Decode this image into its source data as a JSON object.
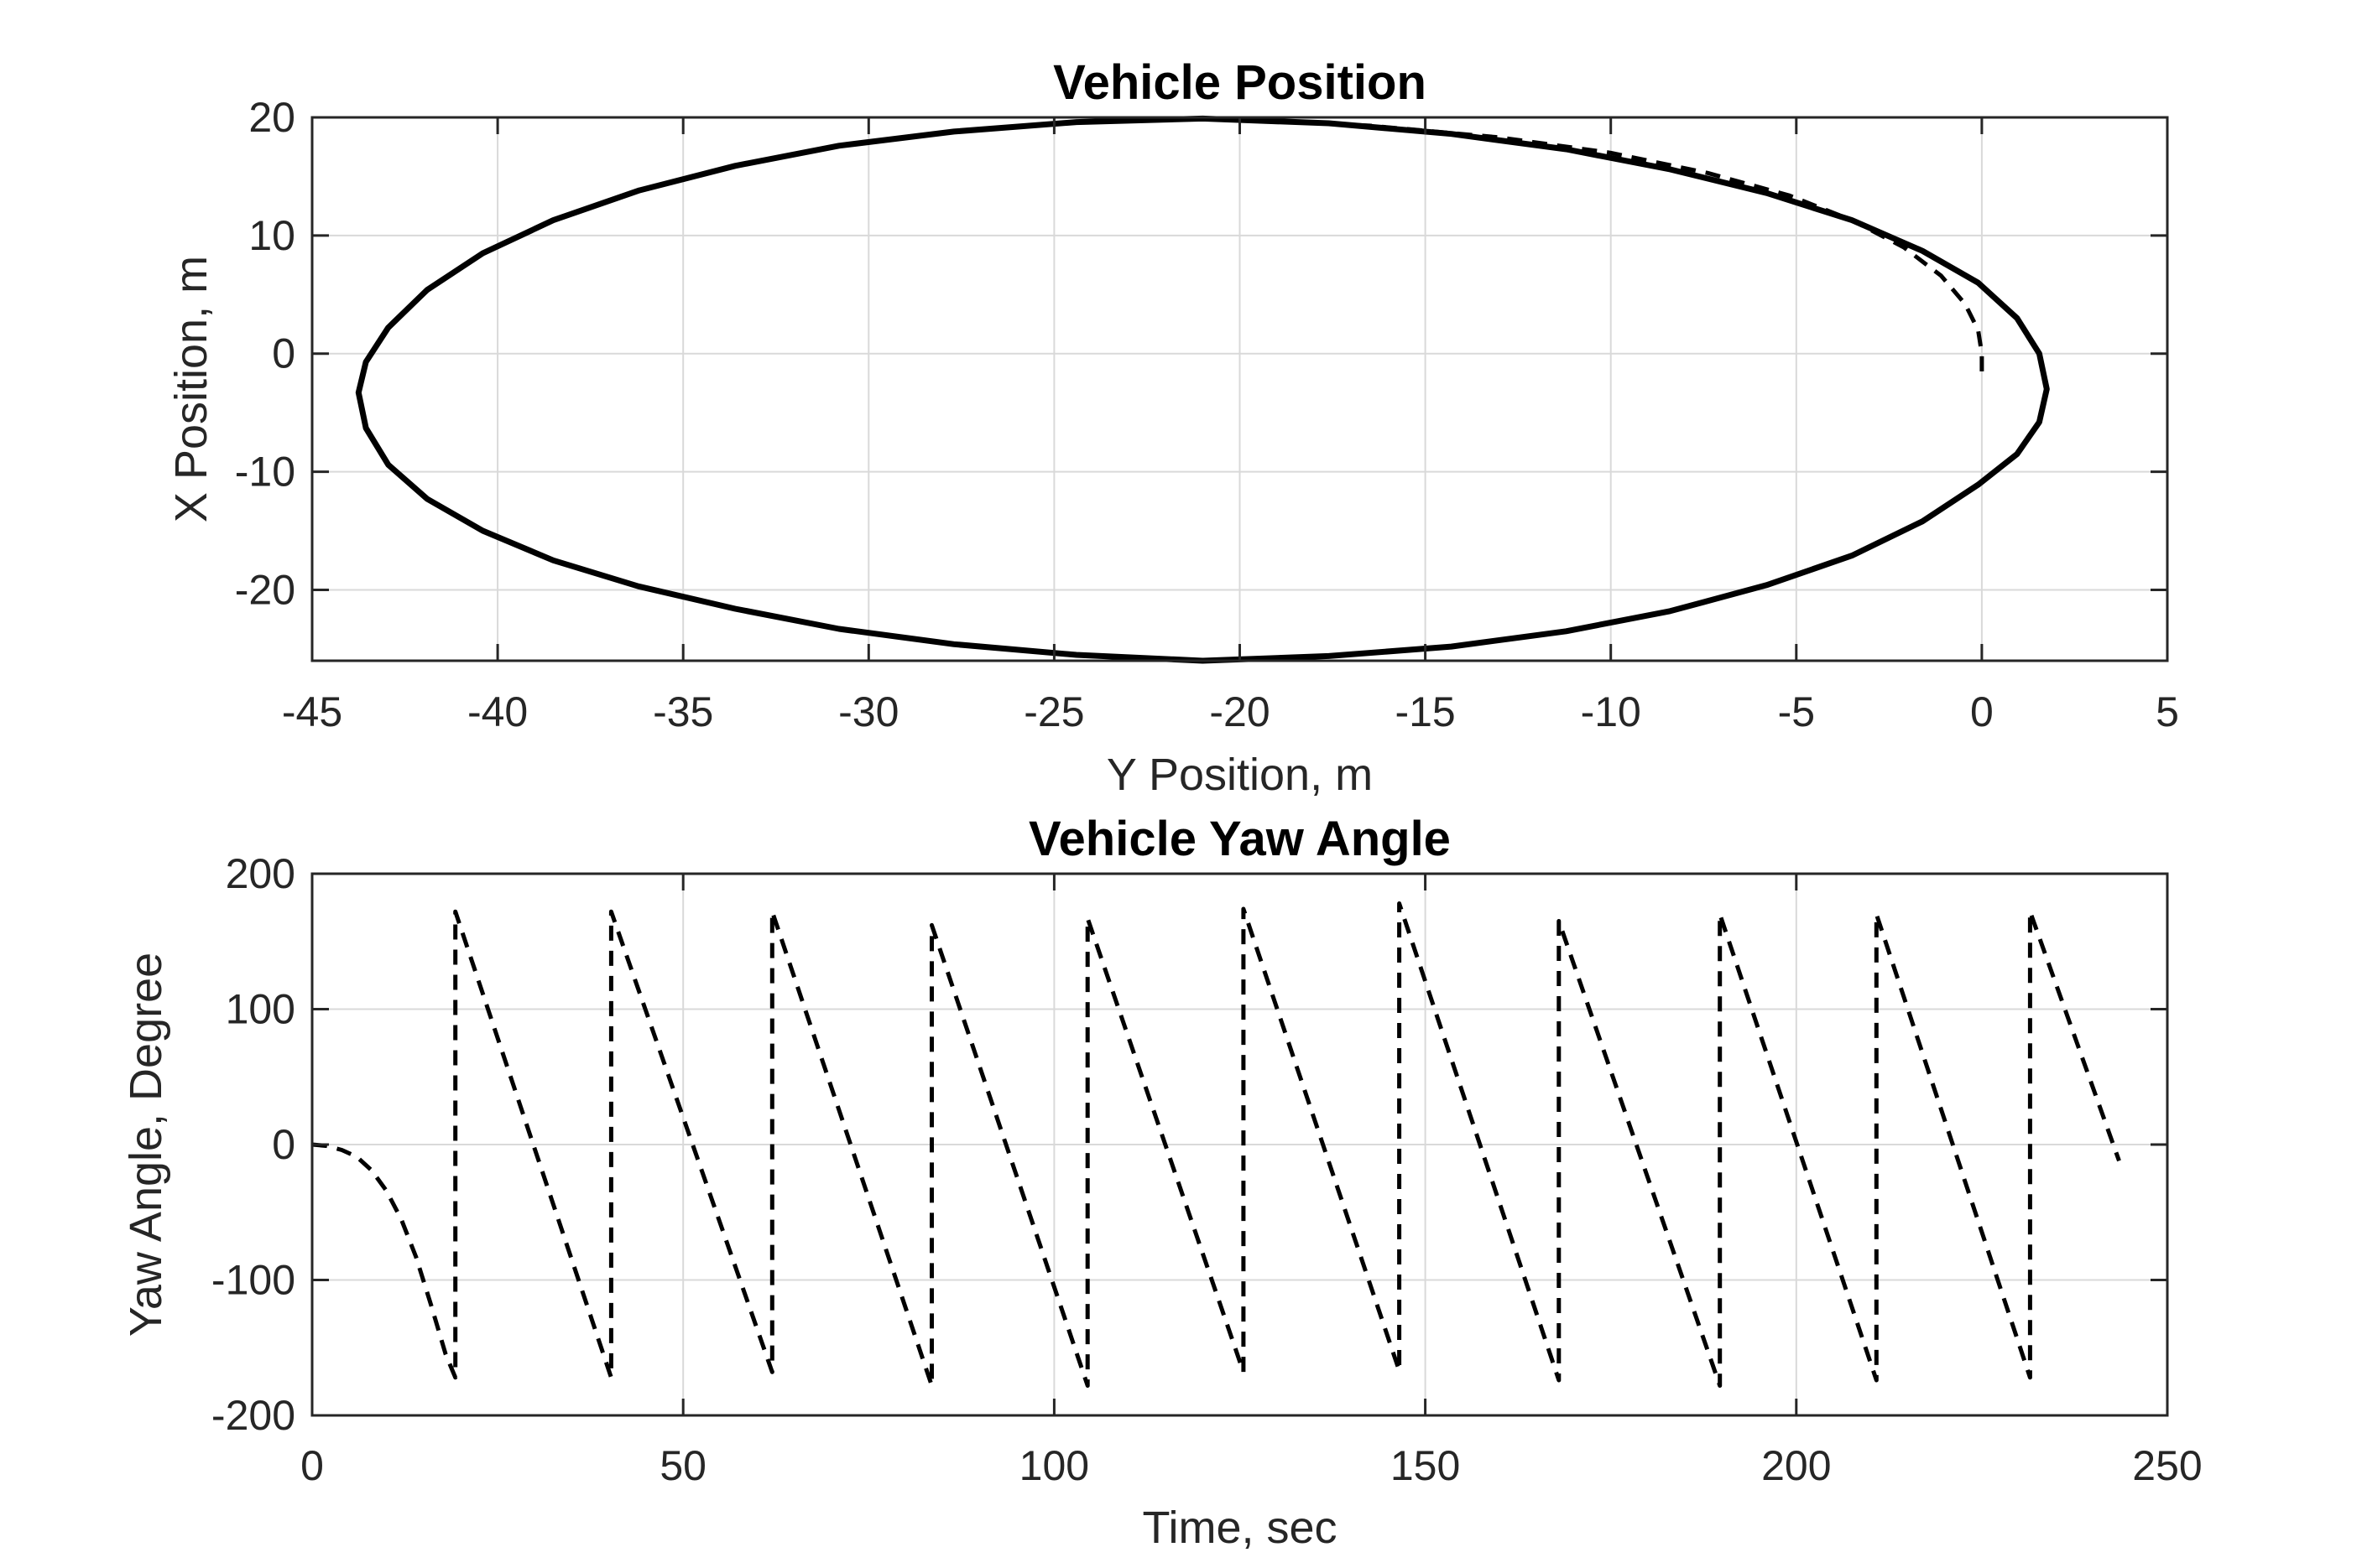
{
  "chart_data": [
    {
      "type": "line",
      "title": "Vehicle Position",
      "xlabel": "Y Position, m",
      "ylabel": "X Position, m",
      "xlim": [
        -45,
        5
      ],
      "ylim": [
        -26,
        20
      ],
      "xticks": [
        "-45",
        "-40",
        "-35",
        "-30",
        "-25",
        "-20",
        "-15",
        "-10",
        "-5",
        "0",
        "5"
      ],
      "yticks": [
        "-20",
        "-10",
        "0",
        "10",
        "20"
      ],
      "grid": true,
      "legend": "none",
      "colors": {
        "line": "#000000",
        "axis": "#262626",
        "grid": "#d9d9d9"
      },
      "series": [
        {
          "style": "solid",
          "shape": "ellipse",
          "center": [
            -21,
            -3
          ],
          "radii": [
            22.75,
            22.75
          ],
          "closed": true,
          "x": [
            1.75,
            1.55,
            0.95,
            -0.1,
            -1.6,
            -3.5,
            -5.8,
            -8.4,
            -11.2,
            -14.3,
            -17.6,
            -21,
            -24.4,
            -27.7,
            -30.8,
            -33.6,
            -36.2,
            -38.5,
            -40.4,
            -41.9,
            -42.95,
            -43.55,
            -43.75,
            -43.55,
            -42.95,
            -41.9,
            -40.4,
            -38.5,
            -36.2,
            -33.6,
            -30.8,
            -27.7,
            -24.4,
            -21,
            -17.6,
            -14.3,
            -11.2,
            -8.4,
            -5.8,
            -3.5,
            -1.6,
            -0.1,
            0.95,
            1.55,
            1.75
          ],
          "y": [
            -3,
            0,
            3,
            6,
            8.7,
            11.3,
            13.6,
            15.6,
            17.3,
            18.6,
            19.5,
            19.9,
            19.6,
            18.8,
            17.6,
            15.9,
            13.8,
            11.3,
            8.5,
            5.4,
            2.2,
            -0.7,
            -3.3,
            -6.3,
            -9.4,
            -12.3,
            -15,
            -17.5,
            -19.7,
            -21.6,
            -23.3,
            -24.6,
            -25.5,
            -26,
            -25.6,
            -24.8,
            -23.5,
            -21.8,
            -19.6,
            -17.1,
            -14.2,
            -11.1,
            -8.5,
            -5.8,
            -3
          ]
        },
        {
          "style": "dashed",
          "x": [
            0,
            0,
            -0.1,
            -0.45,
            -1.1,
            -2.1,
            -3.5,
            -5.2,
            -7.4,
            -10,
            -13,
            -16.5,
            -20
          ],
          "y": [
            -1.5,
            0,
            2,
            4.2,
            6.6,
            9,
            11.3,
            13.4,
            15.3,
            17,
            18.3,
            19.3,
            19.8
          ]
        }
      ]
    },
    {
      "type": "line",
      "title": "Vehicle Yaw Angle",
      "xlabel": "Time, sec",
      "ylabel": "Yaw Angle, Degree",
      "xlim": [
        0,
        250
      ],
      "ylim": [
        -200,
        200
      ],
      "xticks": [
        "0",
        "50",
        "100",
        "150",
        "200",
        "250"
      ],
      "yticks": [
        "-200",
        "-100",
        "0",
        "100",
        "200"
      ],
      "grid": true,
      "legend": "none",
      "colors": {
        "line": "#000000",
        "axis": "#262626",
        "grid": "#d9d9d9"
      },
      "series": [
        {
          "style": "dashed",
          "x": [
            0,
            2,
            4,
            6,
            8,
            10,
            12,
            14,
            16,
            18,
            19.3,
            19.3,
            40.3,
            40.3,
            62,
            62,
            83.5,
            83.5,
            104.5,
            104.5,
            125.5,
            125.5,
            146.5,
            146.5,
            168,
            168,
            189.7,
            189.7,
            210.8,
            210.8,
            231.5,
            231.5,
            243.5
          ],
          "y": [
            0,
            -1,
            -4,
            -9,
            -19,
            -34,
            -55,
            -83,
            -118,
            -155,
            -172,
            172,
            -172,
            172,
            -168,
            172,
            -178,
            162,
            -178,
            167,
            -168,
            174,
            -167,
            178,
            -174,
            165,
            -178,
            170,
            -174,
            170,
            -172,
            172,
            -12
          ]
        }
      ]
    }
  ]
}
